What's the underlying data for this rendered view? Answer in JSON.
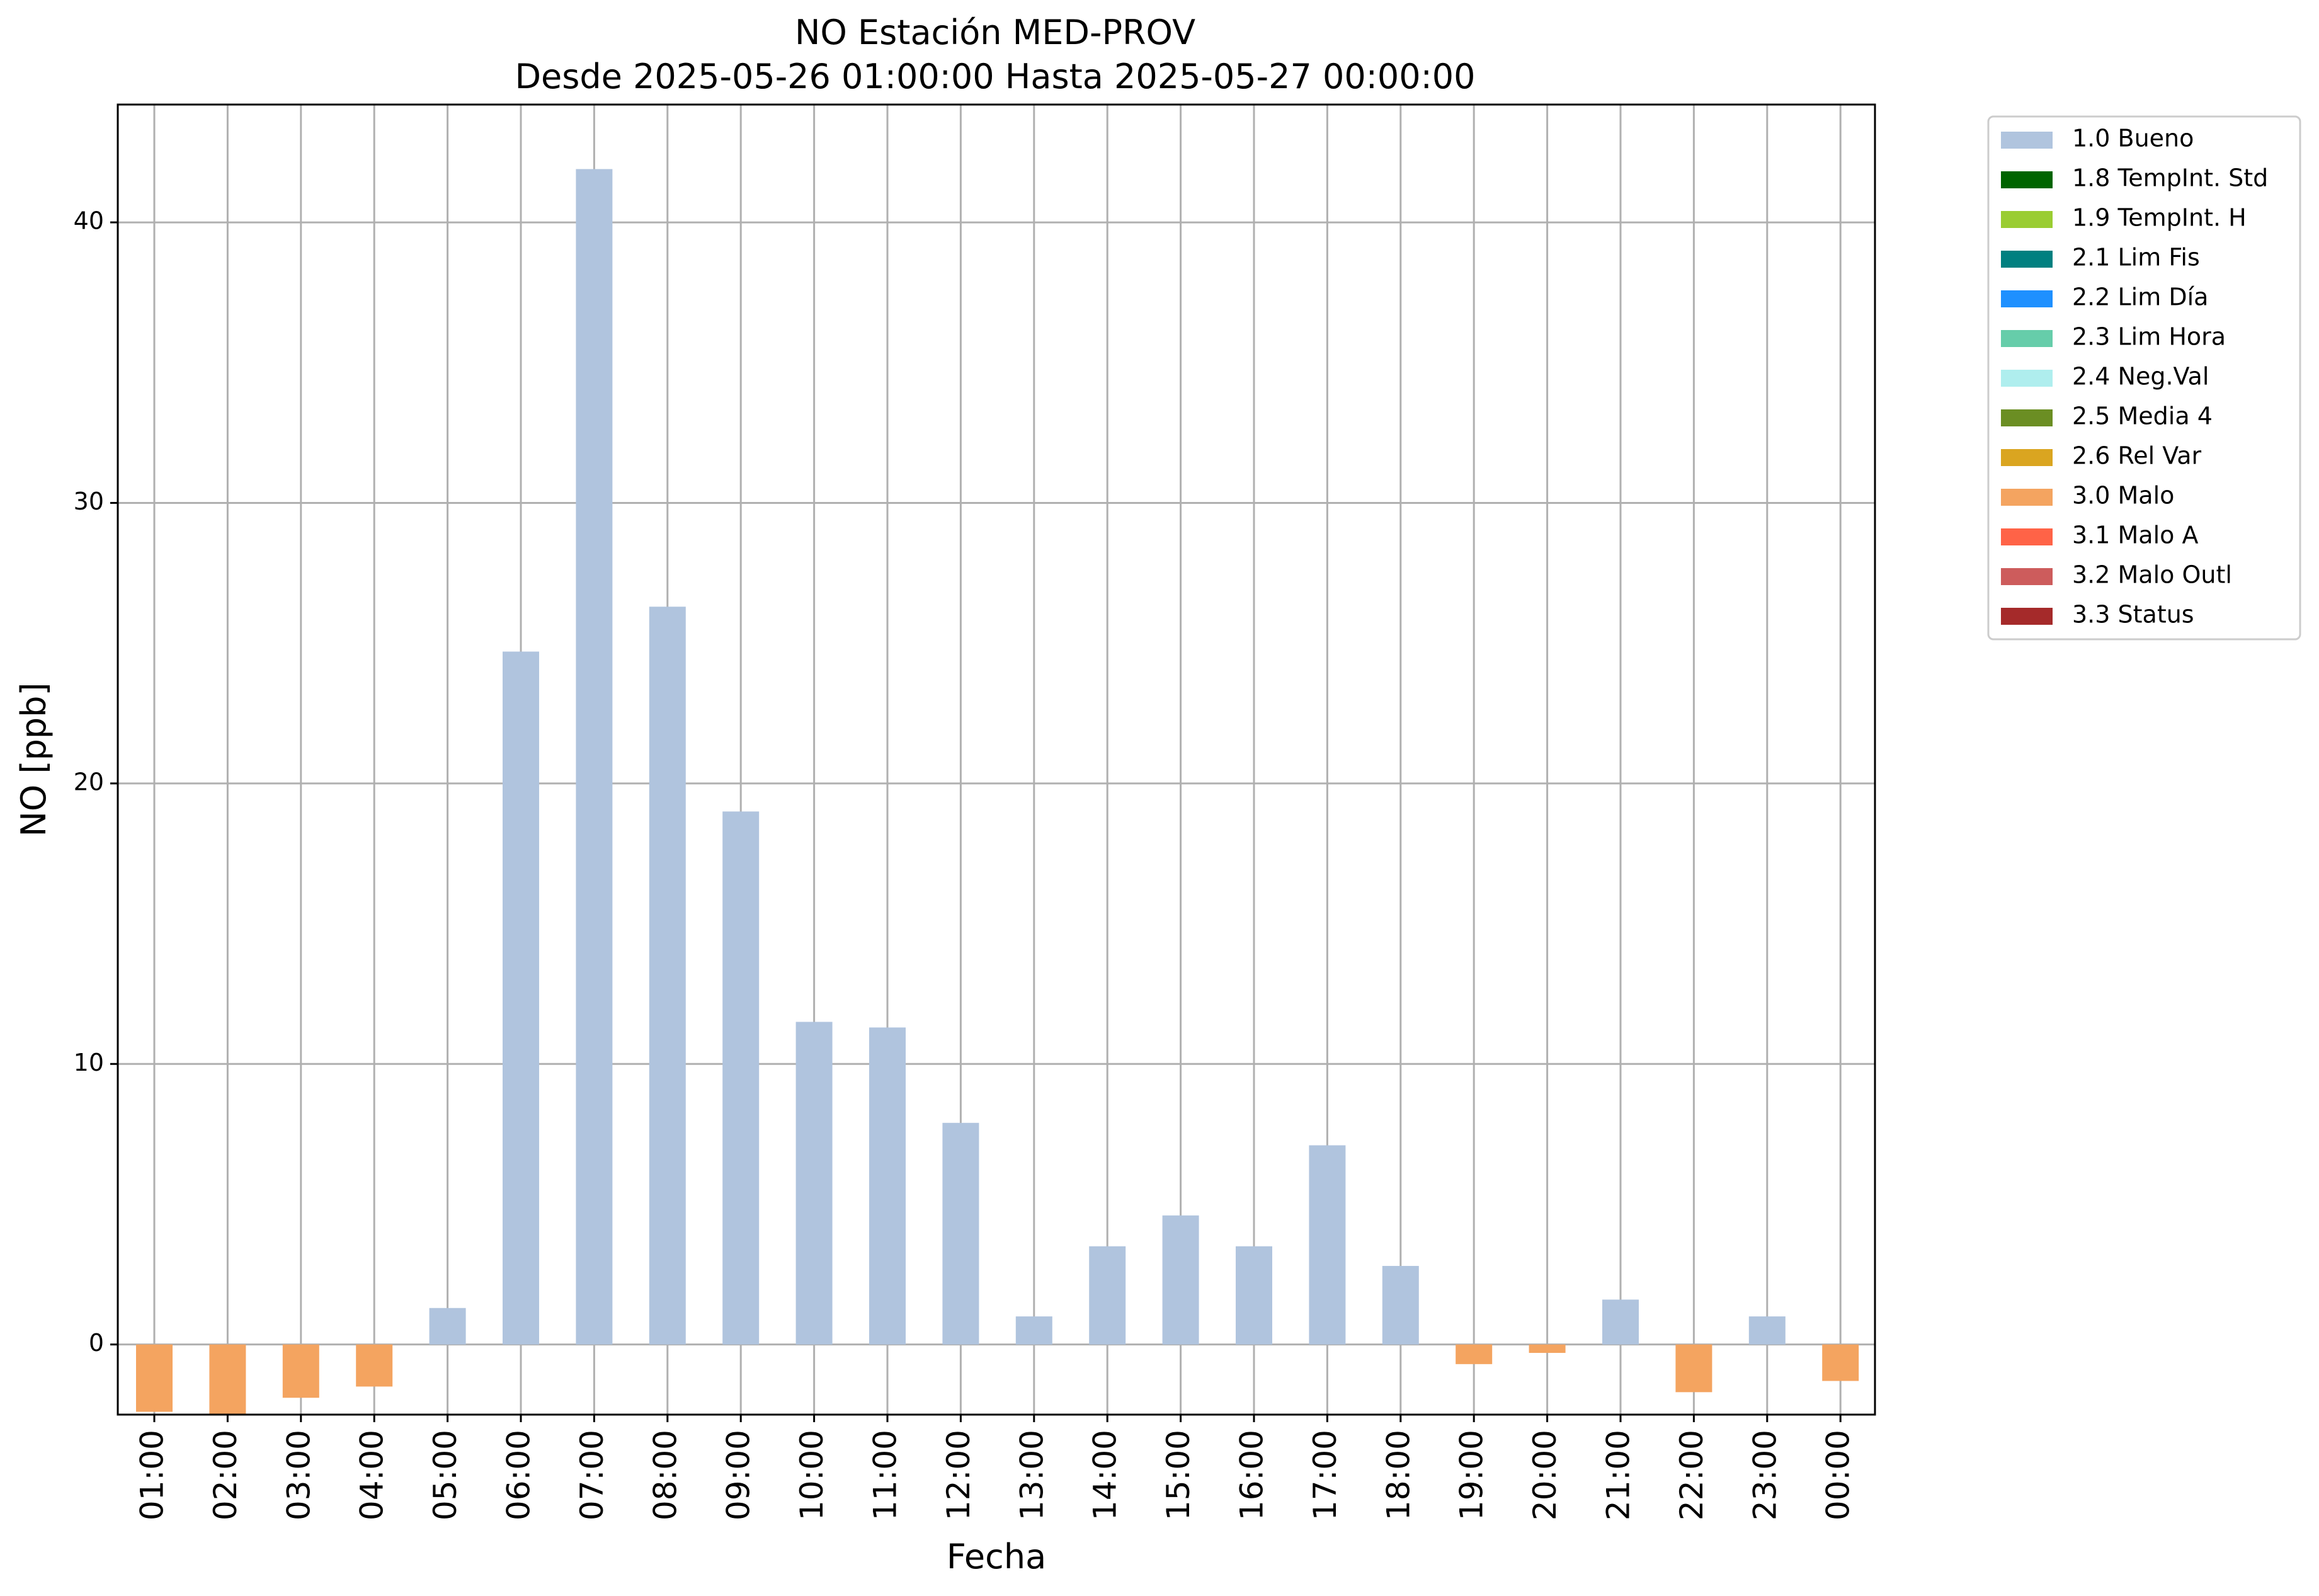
{
  "chart_data": {
    "type": "bar",
    "title": "NO Estación MED-PROV",
    "subtitle": "Desde 2025-05-26 01:00:00 Hasta 2025-05-27 00:00:00",
    "xlabel": "Fecha",
    "ylabel": "NO [ppb]",
    "ylim": [
      -2.5,
      44.2
    ],
    "yticks": [
      0,
      10,
      20,
      30,
      40
    ],
    "grid": true,
    "legend_position": "outside-right",
    "categories": [
      "01:00",
      "02:00",
      "03:00",
      "04:00",
      "05:00",
      "06:00",
      "07:00",
      "08:00",
      "09:00",
      "10:00",
      "11:00",
      "12:00",
      "13:00",
      "14:00",
      "15:00",
      "16:00",
      "17:00",
      "18:00",
      "19:00",
      "20:00",
      "21:00",
      "22:00",
      "23:00",
      "00:00"
    ],
    "values": [
      -2.4,
      -2.5,
      -1.9,
      -1.5,
      1.3,
      24.7,
      41.9,
      26.3,
      19.0,
      11.5,
      11.3,
      7.9,
      1.0,
      3.5,
      4.6,
      3.5,
      7.1,
      2.8,
      -0.7,
      -0.3,
      1.6,
      -1.7,
      1.0,
      -1.3
    ],
    "flags": [
      "3.0 Malo",
      "3.0 Malo",
      "3.0 Malo",
      "3.0 Malo",
      "1.0 Bueno",
      "1.0 Bueno",
      "1.0 Bueno",
      "1.0 Bueno",
      "1.0 Bueno",
      "1.0 Bueno",
      "1.0 Bueno",
      "1.0 Bueno",
      "1.0 Bueno",
      "1.0 Bueno",
      "1.0 Bueno",
      "1.0 Bueno",
      "1.0 Bueno",
      "1.0 Bueno",
      "3.0 Malo",
      "3.0 Malo",
      "1.0 Bueno",
      "3.0 Malo",
      "1.0 Bueno",
      "3.0 Malo"
    ],
    "legend": [
      {
        "label": "1.0 Bueno",
        "color": "#b0c4de"
      },
      {
        "label": "1.8 TempInt. Std",
        "color": "#006400"
      },
      {
        "label": "1.9 TempInt. H",
        "color": "#9acd32"
      },
      {
        "label": "2.1 Lim Fis",
        "color": "#008080"
      },
      {
        "label": "2.2 Lim Día",
        "color": "#1e90ff"
      },
      {
        "label": "2.3 Lim Hora",
        "color": "#66cdaa"
      },
      {
        "label": "2.4 Neg.Val",
        "color": "#afeeee"
      },
      {
        "label": "2.5 Media 4",
        "color": "#6b8e23"
      },
      {
        "label": "2.6 Rel Var",
        "color": "#daa520"
      },
      {
        "label": "3.0 Malo",
        "color": "#f4a460"
      },
      {
        "label": "3.1 Malo A",
        "color": "#ff6347"
      },
      {
        "label": "3.2 Malo Outl",
        "color": "#cd5c5c"
      },
      {
        "label": "3.3 Status",
        "color": "#a52a2a"
      }
    ]
  }
}
